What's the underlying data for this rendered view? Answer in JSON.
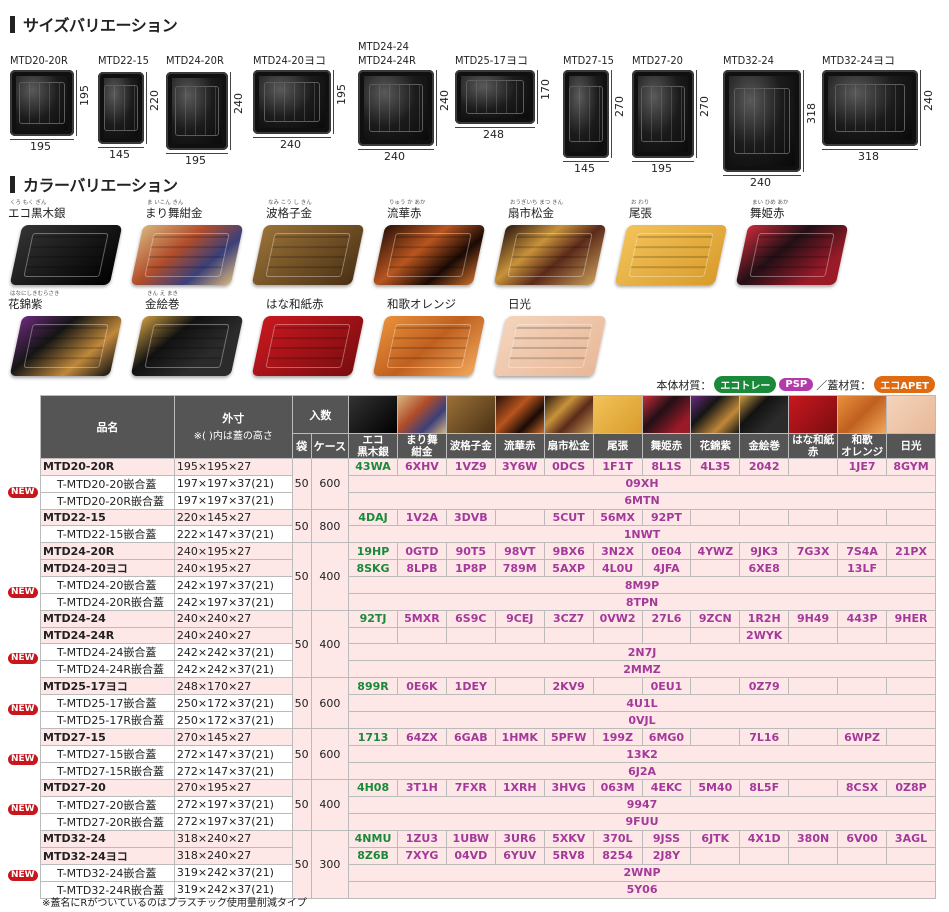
{
  "size_section": {
    "title": "サイズバリエーション"
  },
  "sizes": [
    {
      "name": "MTD20-20R",
      "w": "195",
      "h": "195"
    },
    {
      "name": "MTD22-15",
      "w": "145",
      "h": "220"
    },
    {
      "name": "MTD24-20R",
      "w": "195",
      "h": "240"
    },
    {
      "name": "MTD24-20ヨコ",
      "w": "240",
      "h": "195"
    },
    {
      "name": "MTD24-24\nMTD24-24R",
      "w": "240",
      "h": "240"
    },
    {
      "name": "MTD25-17ヨコ",
      "w": "248",
      "h": "170"
    },
    {
      "name": "MTD27-15",
      "w": "145",
      "h": "270"
    },
    {
      "name": "MTD27-20",
      "w": "195",
      "h": "270"
    },
    {
      "name": "MTD32-24",
      "w": "240",
      "h": "318"
    },
    {
      "name": "MTD32-24ヨコ",
      "w": "318",
      "h": "240"
    }
  ],
  "color_section": {
    "title": "カラーバリエーション"
  },
  "colors": [
    {
      "name": "エコ黒木銀",
      "ruby": "くろ もく ぎん",
      "bg": "#111"
    },
    {
      "name": "まり舞紺金",
      "ruby": "ま いこん きん",
      "bg": "#d9b98a"
    },
    {
      "name": "波格子金",
      "ruby": "なみ こう し きん",
      "bg": "#6a4a22"
    },
    {
      "name": "流華赤",
      "ruby": "りゅう か あか",
      "bg": "#1c0f08"
    },
    {
      "name": "扇市松金",
      "ruby": "おうぎいち まつ きん",
      "bg": "#2a1a10"
    },
    {
      "name": "尾張",
      "ruby": "お わり",
      "bg": "#e9b54a"
    },
    {
      "name": "舞姫赤",
      "ruby": "まい ひめ あか",
      "bg": "#2a0f12"
    },
    {
      "name": "花錦紫",
      "ruby": "はなにしきむらさき",
      "bg": "#161616"
    },
    {
      "name": "金絵巻",
      "ruby": "きん え まき",
      "bg": "#151515"
    },
    {
      "name": "はな和紙赤",
      "ruby": "",
      "bg": "#b0161a"
    },
    {
      "name": "和歌オレンジ",
      "ruby": "",
      "bg": "#d8782a"
    },
    {
      "name": "日光",
      "ruby": "",
      "bg": "#efc8ac"
    }
  ],
  "legend": {
    "body_label": "本体材質：",
    "eco_tray": "エコトレー",
    "psp": "PSP",
    "sep": "／蓋材質：",
    "eco_apet": "エコAPET",
    "eco_color": "#1a8a3a",
    "psp_color": "#b23aaa",
    "apet_color": "#e06a10"
  },
  "table": {
    "h_name": "品名",
    "h_size": "外寸",
    "h_size_note": "※( )内は蓋の高さ",
    "h_qty": "入数",
    "h_bag": "袋",
    "h_case": "ケース",
    "col_heads": [
      "エコ\n黒木銀",
      "まり舞\n紺金",
      "波格子金",
      "流華赤",
      "扇市松金",
      "尾張",
      "舞姫赤",
      "花錦紫",
      "金絵巻",
      "はな和紙\n赤",
      "和歌\nオレンジ",
      "日光"
    ],
    "rows": [
      {
        "type": "main",
        "name": "MTD20-20R",
        "size": "195×195×27",
        "bag": "50",
        "case": "600",
        "span": 3,
        "codes": [
          "43WA",
          "6XHV",
          "1VZ9",
          "3Y6W",
          "0DCS",
          "1F1T",
          "8L1S",
          "4L35",
          "2042",
          "",
          "1JE7",
          "8GYM"
        ]
      },
      {
        "type": "sub",
        "name": "T-MTD20-20嵌合蓋",
        "size": "197×197×37(21)",
        "lid": "09XH"
      },
      {
        "type": "sub",
        "new": true,
        "name": "T-MTD20-20R嵌合蓋",
        "size": "197×197×37(21)",
        "lid": "6MTN"
      },
      {
        "type": "main",
        "name": "MTD22-15",
        "size": "220×145×27",
        "bag": "50",
        "case": "800",
        "span": 2,
        "codes": [
          "4DAJ",
          "1V2A",
          "3DVB",
          "",
          "5CUT",
          "56MX",
          "92PT",
          "",
          "",
          "",
          "",
          ""
        ]
      },
      {
        "type": "sub",
        "name": "T-MTD22-15嵌合蓋",
        "size": "222×147×37(21)",
        "lid": "1NWT"
      },
      {
        "type": "main",
        "name": "MTD24-20R",
        "size": "240×195×27",
        "bag": "50",
        "case": "400",
        "span": 4,
        "codes": [
          "19HP",
          "0GTD",
          "90T5",
          "98VT",
          "9BX6",
          "3N2X",
          "0E04",
          "4YWZ",
          "9JK3",
          "7G3X",
          "7S4A",
          "21PX"
        ]
      },
      {
        "type": "main",
        "name": "MTD24-20ヨコ",
        "size": "240×195×27",
        "codes": [
          "8SKG",
          "8LPB",
          "1P8P",
          "789M",
          "5AXP",
          "4L0U",
          "4JFA",
          "",
          "6XE8",
          "",
          "13LF",
          ""
        ]
      },
      {
        "type": "sub",
        "name": "T-MTD24-20嵌合蓋",
        "size": "242×197×37(21)",
        "lid": "8M9P"
      },
      {
        "type": "sub",
        "new": true,
        "name": "T-MTD24-20R嵌合蓋",
        "size": "242×197×37(21)",
        "lid": "8TPN"
      },
      {
        "type": "main",
        "name": "MTD24-24",
        "size": "240×240×27",
        "bag": "50",
        "case": "400",
        "span": 4,
        "codes": [
          "92TJ",
          "5MXR",
          "6S9C",
          "9CEJ",
          "3CZ7",
          "0VW2",
          "27L6",
          "9ZCN",
          "1R2H",
          "9H49",
          "443P",
          "9HER"
        ]
      },
      {
        "type": "main",
        "name": "MTD24-24R",
        "size": "240×240×27",
        "codes": [
          "",
          "",
          "",
          "",
          "",
          "",
          "",
          "",
          "2WYK",
          "",
          "",
          ""
        ]
      },
      {
        "type": "sub",
        "name": "T-MTD24-24嵌合蓋",
        "size": "242×242×37(21)",
        "lid": "2N7J"
      },
      {
        "type": "sub",
        "new": true,
        "name": "T-MTD24-24R嵌合蓋",
        "size": "242×242×37(21)",
        "lid": "2MMZ"
      },
      {
        "type": "main",
        "name": "MTD25-17ヨコ",
        "size": "248×170×27",
        "bag": "50",
        "case": "600",
        "span": 3,
        "codes": [
          "899R",
          "0E6K",
          "1DEY",
          "",
          "2KV9",
          "",
          "0EU1",
          "",
          "0Z79",
          "",
          "",
          ""
        ]
      },
      {
        "type": "sub",
        "name": "T-MTD25-17嵌合蓋",
        "size": "250×172×37(21)",
        "lid": "4U1L"
      },
      {
        "type": "sub",
        "new": true,
        "name": "T-MTD25-17R嵌合蓋",
        "size": "250×172×37(21)",
        "lid": "0VJL"
      },
      {
        "type": "main",
        "name": "MTD27-15",
        "size": "270×145×27",
        "bag": "50",
        "case": "600",
        "span": 3,
        "codes": [
          "1713",
          "64ZX",
          "6GAB",
          "1HMK",
          "5PFW",
          "199Z",
          "6MG0",
          "",
          "7L16",
          "",
          "6WPZ",
          ""
        ]
      },
      {
        "type": "sub",
        "name": "T-MTD27-15嵌合蓋",
        "size": "272×147×37(21)",
        "lid": "13K2"
      },
      {
        "type": "sub",
        "new": true,
        "name": "T-MTD27-15R嵌合蓋",
        "size": "272×147×37(21)",
        "lid": "6J2A"
      },
      {
        "type": "main",
        "name": "MTD27-20",
        "size": "270×195×27",
        "bag": "50",
        "case": "400",
        "span": 3,
        "codes": [
          "4H08",
          "3T1H",
          "7FXR",
          "1XRH",
          "3HVG",
          "063M",
          "4EKC",
          "5M40",
          "8L5F",
          "",
          "8CSX",
          "0Z8P"
        ]
      },
      {
        "type": "sub",
        "name": "T-MTD27-20嵌合蓋",
        "size": "272×197×37(21)",
        "lid": "9947"
      },
      {
        "type": "sub",
        "new": true,
        "name": "T-MTD27-20R嵌合蓋",
        "size": "272×197×37(21)",
        "lid": "9FUU"
      },
      {
        "type": "main",
        "name": "MTD32-24",
        "size": "318×240×27",
        "bag": "50",
        "case": "300",
        "span": 4,
        "codes": [
          "4NMU",
          "1ZU3",
          "1UBW",
          "3UR6",
          "5XKV",
          "370L",
          "9JSS",
          "6JTK",
          "4X1D",
          "380N",
          "6V00",
          "3AGL"
        ]
      },
      {
        "type": "main",
        "name": "MTD32-24ヨコ",
        "size": "318×240×27",
        "codes": [
          "8Z6B",
          "7XYG",
          "04VD",
          "6YUV",
          "5RV8",
          "8254",
          "2J8Y",
          "",
          "",
          "",
          "",
          ""
        ]
      },
      {
        "type": "sub",
        "name": "T-MTD32-24嵌合蓋",
        "size": "319×242×37(21)",
        "lid": "2WNP"
      },
      {
        "type": "sub",
        "new": true,
        "name": "T-MTD32-24R嵌合蓋",
        "size": "319×242×37(21)",
        "lid": "5Y06"
      }
    ]
  },
  "new_label": "NEW",
  "footnote": "※蓋名にRがついているのはプラスチック使用量削減タイプ"
}
